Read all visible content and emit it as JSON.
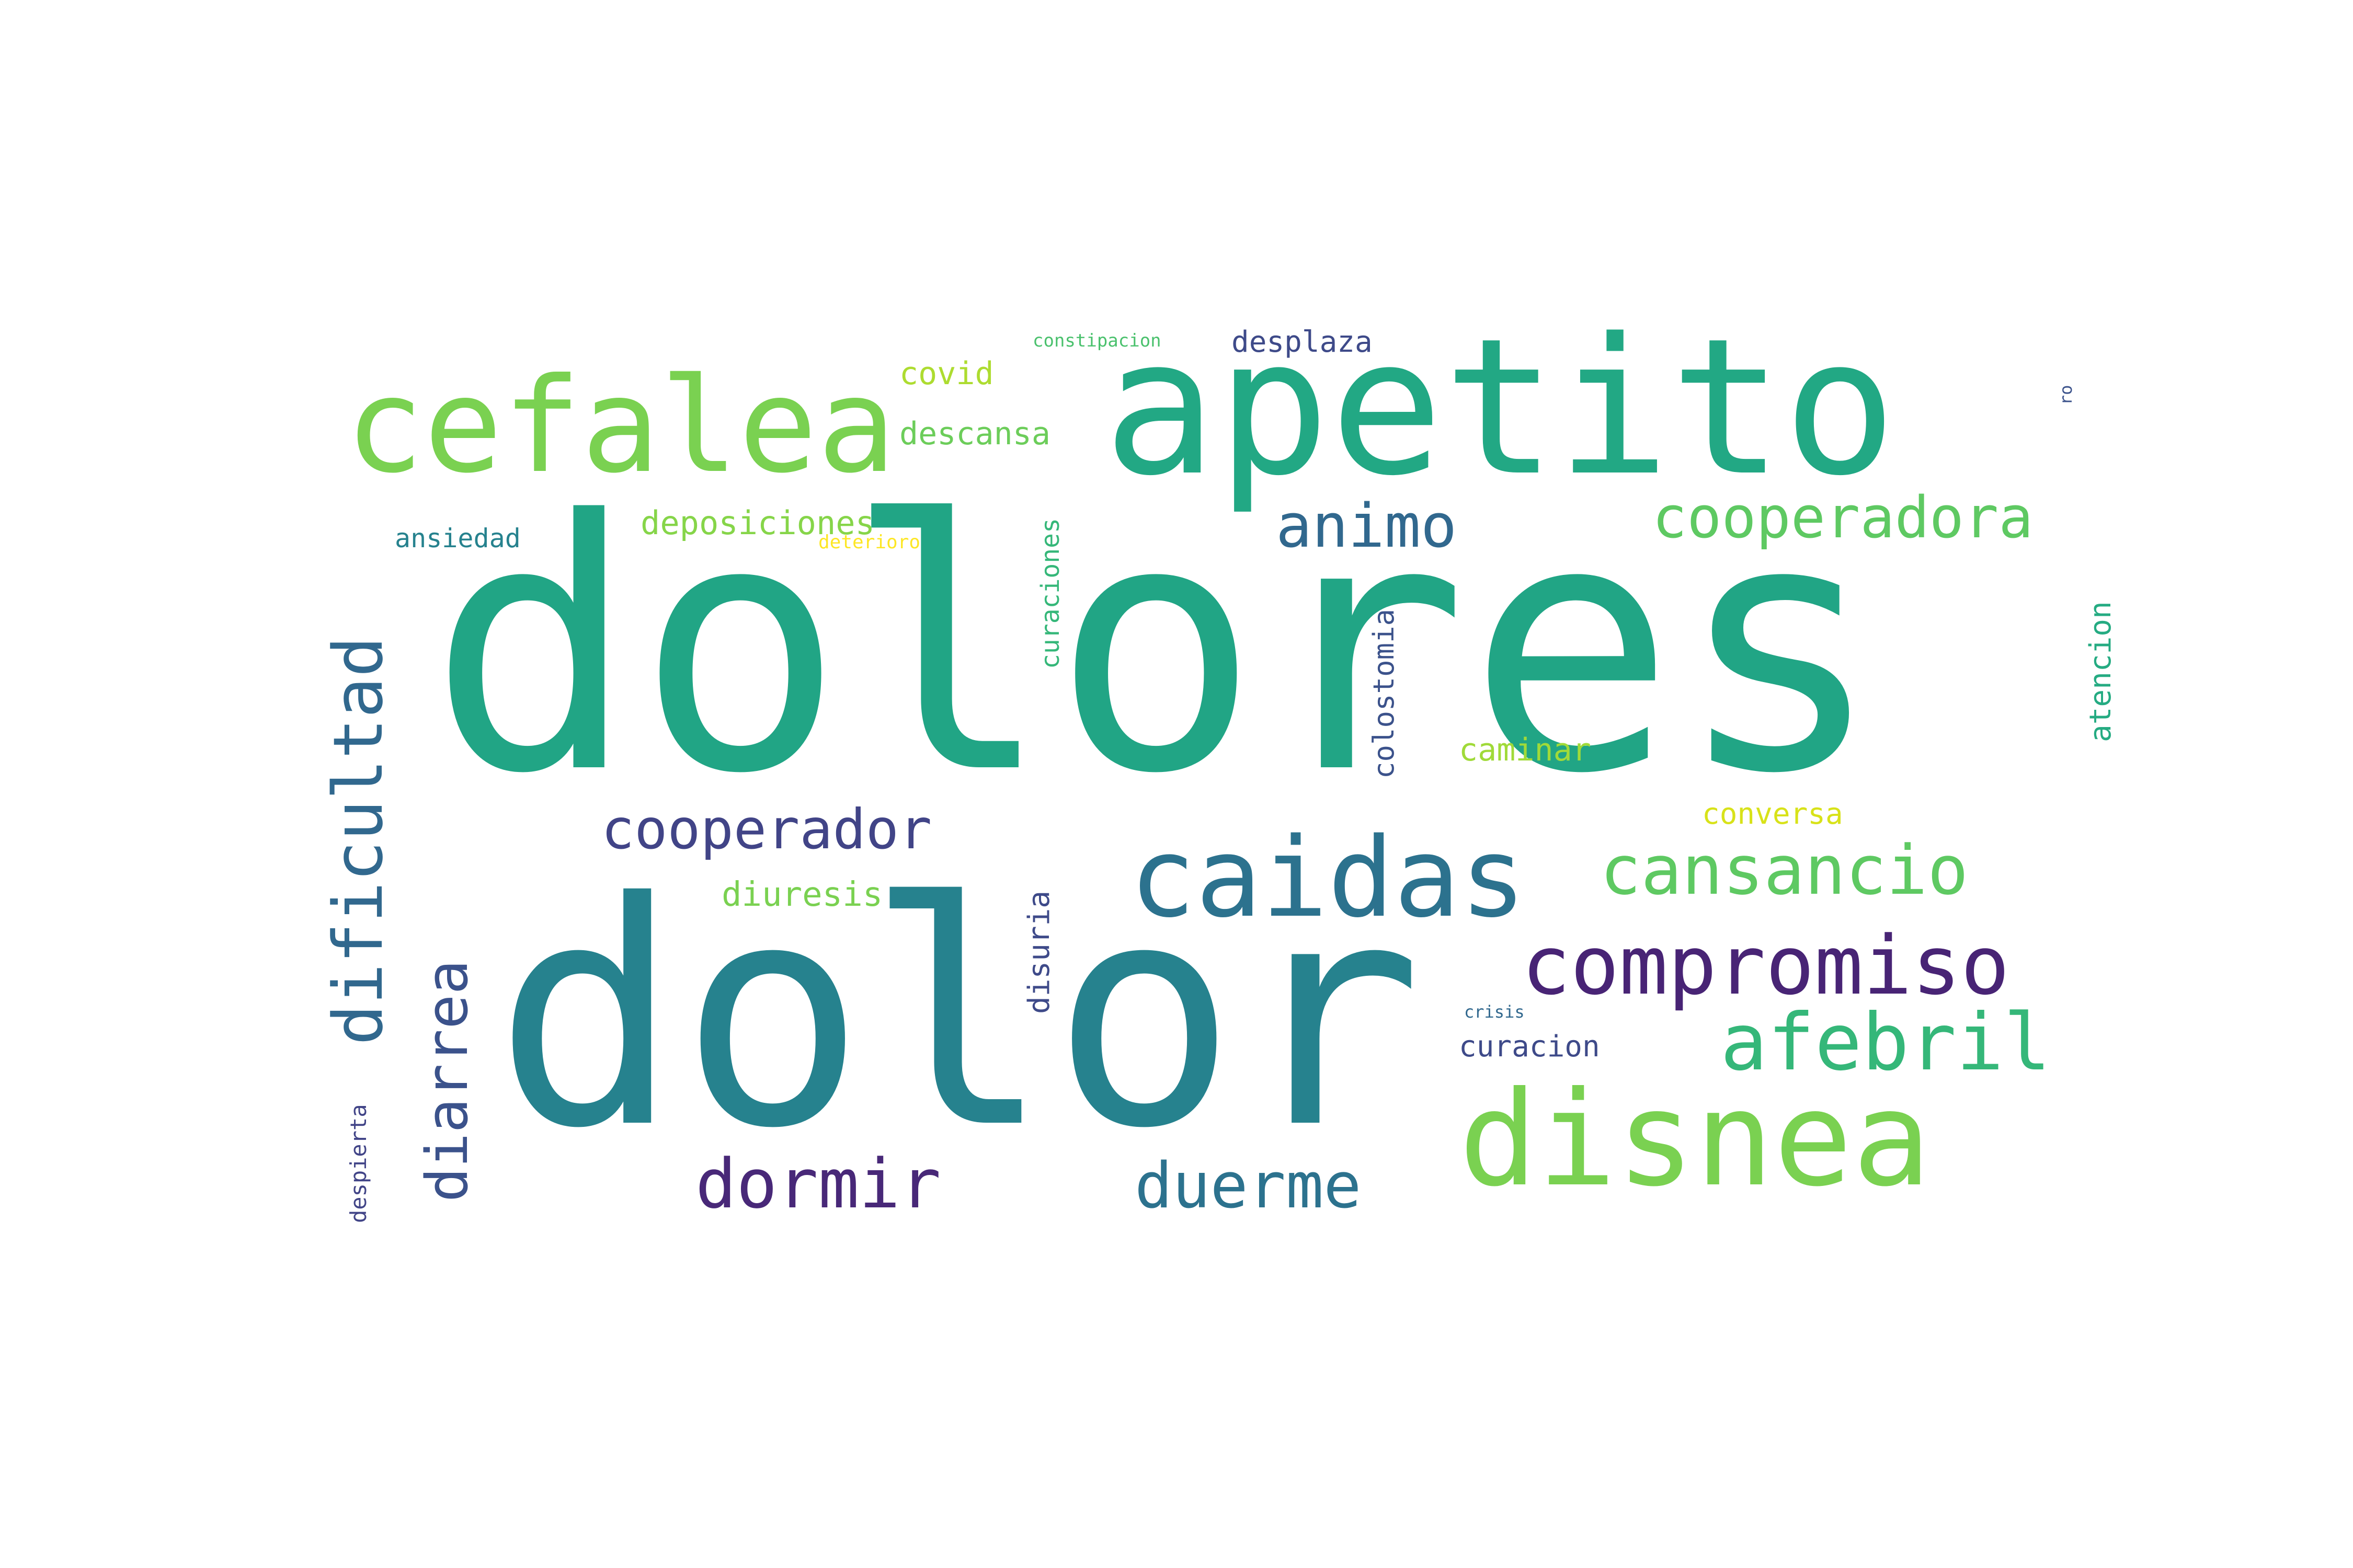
{
  "words": [
    {
      "text": "dolores",
      "color": "#21a585"
    },
    {
      "text": "dolor",
      "color": "#26828e"
    },
    {
      "text": "apetito",
      "color": "#22a884"
    },
    {
      "text": "cefalea",
      "color": "#7ad151"
    },
    {
      "text": "disnea",
      "color": "#7ad151"
    },
    {
      "text": "caidas",
      "color": "#2c728e"
    },
    {
      "text": "dificultad",
      "color": "#31688e"
    },
    {
      "text": "compromiso",
      "color": "#482475"
    },
    {
      "text": "cansancio",
      "color": "#5ec962"
    },
    {
      "text": "afebril",
      "color": "#35b779"
    },
    {
      "text": "cooperadora",
      "color": "#5ec962"
    },
    {
      "text": "animo",
      "color": "#31688e"
    },
    {
      "text": "diarrea",
      "color": "#3b528b"
    },
    {
      "text": "cooperador",
      "color": "#414487"
    },
    {
      "text": "dormir",
      "color": "#482878"
    },
    {
      "text": "duerme",
      "color": "#2c728e"
    },
    {
      "text": "deposiciones",
      "color": "#86d549"
    },
    {
      "text": "covid",
      "color": "#addc30"
    },
    {
      "text": "descansa",
      "color": "#6ccd5a"
    },
    {
      "text": "desplaza",
      "color": "#3e4a89"
    },
    {
      "text": "constipacion",
      "color": "#4ac16d"
    },
    {
      "text": "ansiedad",
      "color": "#26828e"
    },
    {
      "text": "deterioro",
      "color": "#fde725"
    },
    {
      "text": "curaciones",
      "color": "#35b779"
    },
    {
      "text": "colostomia",
      "color": "#3b528b"
    },
    {
      "text": "caminar",
      "color": "#a0da39"
    },
    {
      "text": "conversa",
      "color": "#d8e219"
    },
    {
      "text": "diuresis",
      "color": "#7ad151"
    },
    {
      "text": "disuria",
      "color": "#3e4a89"
    },
    {
      "text": "crisis",
      "color": "#31688e"
    },
    {
      "text": "curacion",
      "color": "#3e4a89"
    },
    {
      "text": "despierta",
      "color": "#414487"
    },
    {
      "text": "atencion",
      "color": "#25ab82"
    },
    {
      "text": "ro",
      "color": "#3b528b"
    }
  ]
}
